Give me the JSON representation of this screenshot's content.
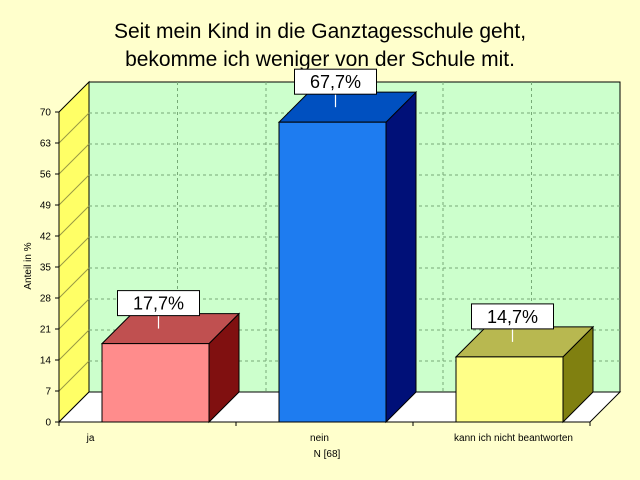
{
  "chart_data": {
    "type": "bar",
    "title_lines": [
      "Seit mein Kind in die Ganztagesschule geht,",
      "bekomme ich weniger von der Schule mit."
    ],
    "ylabel": "Anteil in %",
    "xlabel": "N [68]",
    "categories": [
      "ja",
      "nein",
      "kann ich nicht beantworten"
    ],
    "values": [
      17.7,
      67.7,
      14.7
    ],
    "data_labels": [
      "17,7%",
      "67,7%",
      "14,7%"
    ],
    "ylim": [
      0,
      70
    ],
    "yticks": [
      0,
      7,
      14,
      21,
      28,
      35,
      42,
      49,
      56,
      63,
      70
    ],
    "grid": true,
    "colors": {
      "background": "#FFFFCC",
      "plot_back": "#CCFFCC",
      "side_wall": "#FFFF66",
      "bars": [
        {
          "front": "#FF8C8C",
          "top": "#C05050",
          "side": "#801010"
        },
        {
          "front": "#1E7CF0",
          "top": "#0050C0",
          "side": "#001078"
        },
        {
          "front": "#FFFF88",
          "top": "#B8B850",
          "side": "#808010"
        }
      ]
    }
  }
}
